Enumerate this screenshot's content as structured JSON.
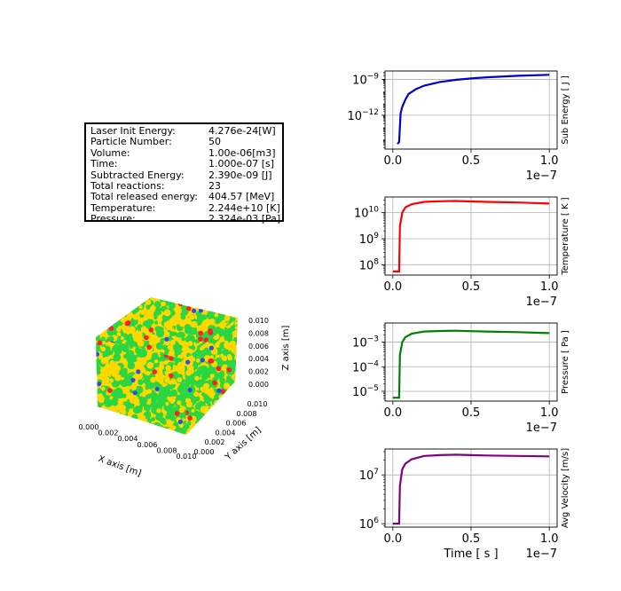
{
  "info": [
    {
      "label": "Laser Init Energy:",
      "value": "4.276e-24[W]"
    },
    {
      "label": "Particle Number:",
      "value": "50"
    },
    {
      "label": "Volume:",
      "value": "1.00e-06[m3]"
    },
    {
      "label": "Time:",
      "value": "1.000e-07 [s]"
    },
    {
      "label": "Subtracted Energy:",
      "value": "2.390e-09 [J]"
    },
    {
      "label": "Total reactions:",
      "value": "23"
    },
    {
      "label": "Total released energy:",
      "value": "404.57 [MeV]"
    },
    {
      "label": "Temperature:",
      "value": "2.244e+10 [K]"
    },
    {
      "label": "Pressure:",
      "value": "2.324e-03 [Pa]"
    }
  ],
  "cube": {
    "xlabel": "X axis [m]",
    "ylabel": "Y axis [m]",
    "zlabel": "Z axis [m]",
    "ticks": [
      "0.000",
      "0.002",
      "0.004",
      "0.006",
      "0.008",
      "0.010"
    ],
    "colors": {
      "yellow": "#ffd700",
      "green": "#2bd642",
      "red": "#ff2020",
      "blue": "#2a4ee8"
    }
  },
  "chart_data": [
    {
      "type": "line",
      "ylabel": "Sub Energy [ J ]",
      "color": "#0000cc",
      "yscale": "log",
      "ylim": [
        1.5e-15,
        5e-09
      ],
      "xlim": [
        -5e-09,
        1.05e-07
      ],
      "xticks": [
        "0.0",
        "0.5",
        "1.0"
      ],
      "offset_label": "1e−7",
      "yticks": [
        {
          "v": 1e-09,
          "label": "10",
          "exp": "−9"
        },
        {
          "v": 1e-12,
          "label": "10",
          "exp": "−12"
        }
      ],
      "x": [
        3e-09,
        4e-09,
        5e-09,
        6e-09,
        8e-09,
        1e-08,
        1.5e-08,
        2e-08,
        3e-08,
        4e-08,
        5e-08,
        6e-08,
        8e-08,
        1e-07
      ],
      "y": [
        4e-15,
        6e-15,
        1.5e-12,
        5e-12,
        2e-11,
        6e-11,
        1.6e-10,
        3e-10,
        6e-10,
        9e-10,
        1.2e-09,
        1.5e-09,
        2e-09,
        2.4e-09
      ]
    },
    {
      "type": "line",
      "ylabel": "Temperature [ K ]",
      "color": "#ff0000",
      "yscale": "log",
      "ylim": [
        40000000.0,
        40000000000.0
      ],
      "xlim": [
        -5e-09,
        1.05e-07
      ],
      "xticks": [
        "0.0",
        "0.5",
        "1.0"
      ],
      "offset_label": "1e−7",
      "yticks": [
        {
          "v": 10000000000.0,
          "label": "10",
          "exp": "10"
        },
        {
          "v": 1000000000.0,
          "label": "10",
          "exp": "9"
        },
        {
          "v": 100000000.0,
          "label": "10",
          "exp": "8"
        }
      ],
      "x": [
        0.0,
        4e-09,
        4.5e-09,
        6e-09,
        8e-09,
        1.2e-08,
        2e-08,
        3e-08,
        4e-08,
        5e-08,
        6e-08,
        8e-08,
        1e-07
      ],
      "y": [
        55000000.0,
        55000000.0,
        3000000000.0,
        10000000000.0,
        16000000000.0,
        21000000000.0,
        26000000000.0,
        27500000000.0,
        28000000000.0,
        27000000000.0,
        26000000000.0,
        24500000000.0,
        22440000000.0
      ]
    },
    {
      "type": "line",
      "ylabel": "Pressure [ Pa ]",
      "color": "#008000",
      "yscale": "log",
      "ylim": [
        4e-06,
        0.006
      ],
      "xlim": [
        -5e-09,
        1.05e-07
      ],
      "xticks": [
        "0.0",
        "0.5",
        "1.0"
      ],
      "offset_label": "1e−7",
      "yticks": [
        {
          "v": 0.001,
          "label": "10",
          "exp": "−3"
        },
        {
          "v": 0.0001,
          "label": "10",
          "exp": "−4"
        },
        {
          "v": 1e-05,
          "label": "10",
          "exp": "−5"
        }
      ],
      "x": [
        0.0,
        4e-09,
        4.5e-09,
        6e-09,
        8e-09,
        1.2e-08,
        2e-08,
        3e-08,
        4e-08,
        5e-08,
        6e-08,
        8e-08,
        1e-07
      ],
      "y": [
        5.5e-06,
        5.5e-06,
        0.0003,
        0.001,
        0.0016,
        0.0022,
        0.0027,
        0.00285,
        0.0029,
        0.0028,
        0.0027,
        0.00255,
        0.002324
      ]
    },
    {
      "type": "line",
      "ylabel": "Avg Velocity [m/s]",
      "color": "#800080",
      "yscale": "log",
      "ylim": [
        850000.0,
        34000000.0
      ],
      "xlim": [
        -5e-09,
        1.05e-07
      ],
      "xticks": [
        "0.0",
        "0.5",
        "1.0"
      ],
      "offset_label": "1e−7",
      "xlabel": "Time [ s ]",
      "yticks": [
        {
          "v": 10000000.0,
          "label": "10",
          "exp": "7"
        },
        {
          "v": 1000000.0,
          "label": "10",
          "exp": "6"
        }
      ],
      "x": [
        0.0,
        4e-09,
        4.5e-09,
        6e-09,
        8e-09,
        1.2e-08,
        2e-08,
        3e-08,
        4e-08,
        5e-08,
        6e-08,
        8e-08,
        1e-07
      ],
      "y": [
        1000000.0,
        1000000.0,
        6000000.0,
        13000000.0,
        17000000.0,
        21000000.0,
        24500000.0,
        25500000.0,
        26000000.0,
        25500000.0,
        25000000.0,
        24500000.0,
        24000000.0
      ]
    }
  ]
}
